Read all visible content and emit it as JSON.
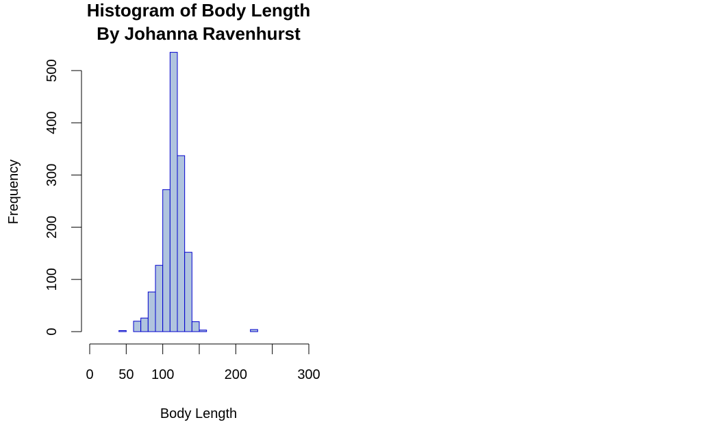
{
  "chart_data": {
    "type": "bar",
    "title": "Histogram of Body Length",
    "subtitle": "By Johanna Ravenhurst",
    "xlabel": "Body Length",
    "ylabel": "Frequency",
    "xlim": [
      0,
      300
    ],
    "ylim": [
      0,
      500
    ],
    "x_ticks": [
      0,
      50,
      100,
      200,
      300
    ],
    "x_tick_marks": [
      0,
      50,
      100,
      150,
      200,
      250,
      300
    ],
    "y_ticks": [
      0,
      100,
      200,
      300,
      400,
      500
    ],
    "bin_width": 10,
    "bins": [
      {
        "start": 40,
        "end": 50,
        "count": 2
      },
      {
        "start": 50,
        "end": 60,
        "count": 0
      },
      {
        "start": 60,
        "end": 70,
        "count": 20
      },
      {
        "start": 70,
        "end": 80,
        "count": 26
      },
      {
        "start": 80,
        "end": 90,
        "count": 76
      },
      {
        "start": 90,
        "end": 100,
        "count": 127
      },
      {
        "start": 100,
        "end": 110,
        "count": 272
      },
      {
        "start": 110,
        "end": 120,
        "count": 535
      },
      {
        "start": 120,
        "end": 130,
        "count": 337
      },
      {
        "start": 130,
        "end": 140,
        "count": 152
      },
      {
        "start": 140,
        "end": 150,
        "count": 19
      },
      {
        "start": 150,
        "end": 160,
        "count": 3
      },
      {
        "start": 160,
        "end": 170,
        "count": 0
      },
      {
        "start": 170,
        "end": 180,
        "count": 0
      },
      {
        "start": 180,
        "end": 190,
        "count": 0
      },
      {
        "start": 190,
        "end": 200,
        "count": 0
      },
      {
        "start": 200,
        "end": 210,
        "count": 0
      },
      {
        "start": 210,
        "end": 220,
        "count": 0
      },
      {
        "start": 220,
        "end": 230,
        "count": 4
      },
      {
        "start": 230,
        "end": 240,
        "count": 0
      },
      {
        "start": 240,
        "end": 250,
        "count": 0
      },
      {
        "start": 250,
        "end": 260,
        "count": 0
      },
      {
        "start": 260,
        "end": 270,
        "count": 0
      }
    ],
    "grid": false,
    "colors": {
      "bar_fill": "#b0c4de",
      "bar_stroke": "#0000cd",
      "axis": "#000000"
    }
  }
}
